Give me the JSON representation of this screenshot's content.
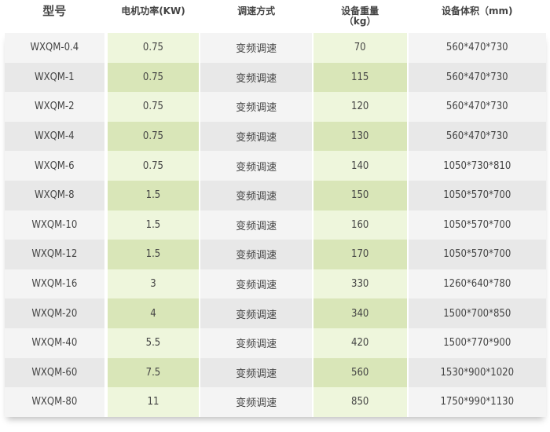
{
  "headers": [
    "型号",
    "电机功率(KW)",
    "调速方式",
    "设备重量\n（kg）",
    "设备体积（mm)"
  ],
  "rows": [
    [
      "WXQM-0.4",
      "0.75",
      "变频调速",
      "70",
      "560*470*730"
    ],
    [
      "WXQM-1",
      "0.75",
      "变频调速",
      "115",
      "560*470*730"
    ],
    [
      "WXQM-2",
      "0.75",
      "变频调速",
      "120",
      "560*470*730"
    ],
    [
      "WXQM-4",
      "0.75",
      "变频调速",
      "130",
      "560*470*730"
    ],
    [
      "WXQM-6",
      "0.75",
      "变频调速",
      "140",
      "1050*730*810"
    ],
    [
      "WXQM-8",
      "1.5",
      "变频调速",
      "150",
      "1050*570*700"
    ],
    [
      "WXQM-10",
      "1.5",
      "变频调速",
      "160",
      "1050*570*700"
    ],
    [
      "WXQM-12",
      "1.5",
      "变频调速",
      "170",
      "1050*570*700"
    ],
    [
      "WXQM-16",
      "3",
      "变频调速",
      "330",
      "1260*640*780"
    ],
    [
      "WXQM-20",
      "4",
      "变频调速",
      "340",
      "1500*700*850"
    ],
    [
      "WXQM-40",
      "5.5",
      "变频调速",
      "420",
      "1500*770*900"
    ],
    [
      "WXQM-60",
      "7.5",
      "变频调速",
      "560",
      "1530*900*1020"
    ],
    [
      "WXQM-80",
      "11",
      "变频调速",
      "850",
      "1750*990*1130"
    ]
  ],
  "colors": {
    "green_light": "#eef6dc",
    "green_dark": "#d9e6b8",
    "gray_light": "#f4f4f4",
    "gray_dark": "#e8e8e8"
  }
}
